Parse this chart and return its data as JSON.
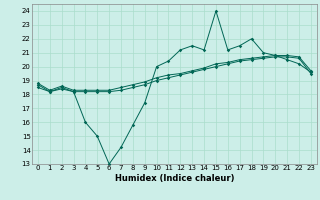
{
  "title": "",
  "xlabel": "Humidex (Indice chaleur)",
  "ylabel": "",
  "bg_color": "#cceee8",
  "grid_color": "#aaddcc",
  "line_color": "#006655",
  "xlim": [
    -0.5,
    23.5
  ],
  "ylim": [
    13,
    24.5
  ],
  "yticks": [
    13,
    14,
    15,
    16,
    17,
    18,
    19,
    20,
    21,
    22,
    23,
    24
  ],
  "xticks": [
    0,
    1,
    2,
    3,
    4,
    5,
    6,
    7,
    8,
    9,
    10,
    11,
    12,
    13,
    14,
    15,
    16,
    17,
    18,
    19,
    20,
    21,
    22,
    23
  ],
  "series1": [
    18.5,
    18.2,
    18.5,
    18.2,
    16.0,
    15.0,
    13.0,
    14.2,
    15.8,
    17.4,
    20.0,
    20.4,
    21.2,
    21.5,
    21.2,
    24.0,
    21.2,
    21.5,
    22.0,
    21.0,
    20.8,
    20.5,
    20.2,
    19.6
  ],
  "series2": [
    18.8,
    18.3,
    18.6,
    18.3,
    18.3,
    18.3,
    18.3,
    18.5,
    18.7,
    18.9,
    19.2,
    19.4,
    19.5,
    19.7,
    19.9,
    20.2,
    20.3,
    20.5,
    20.6,
    20.7,
    20.8,
    20.8,
    20.7,
    19.7
  ],
  "series3": [
    18.7,
    18.2,
    18.4,
    18.2,
    18.2,
    18.2,
    18.2,
    18.3,
    18.5,
    18.7,
    19.0,
    19.2,
    19.4,
    19.6,
    19.8,
    20.0,
    20.2,
    20.4,
    20.5,
    20.6,
    20.7,
    20.7,
    20.6,
    19.5
  ],
  "tick_fontsize": 5.0,
  "xlabel_fontsize": 6.0
}
